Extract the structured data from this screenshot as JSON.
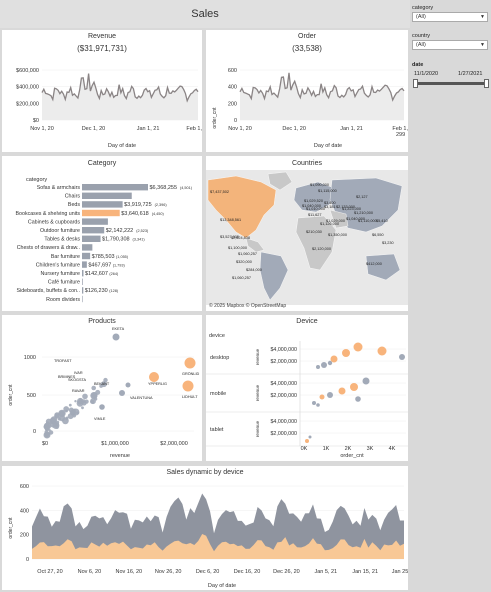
{
  "dashboard": {
    "title": "Sales"
  },
  "filters": {
    "category": {
      "label": "category",
      "value": "(All)"
    },
    "country": {
      "label": "country",
      "value": "(All)"
    },
    "date": {
      "label": "date",
      "start": "11/1/2020",
      "end": "1/27/2021"
    }
  },
  "revenue": {
    "title": "Revenue",
    "total": "($31,971,731)",
    "xlabel": "Day of date",
    "yticks": [
      "$600,000",
      "$400,000",
      "$200,000",
      "$0"
    ],
    "xticks": [
      "Nov 1, 20",
      "Dec 1, 20",
      "Jan 1, 21",
      "Feb 1, 21"
    ]
  },
  "order": {
    "title": "Order",
    "total": "(33,538)",
    "xlabel": "Day of date",
    "ylabel": "order_cnt",
    "yticks": [
      "600",
      "400",
      "200",
      "0"
    ],
    "xticks": [
      "Nov 1, 20",
      "Dec 1, 20",
      "Jan 1, 21",
      "Feb 1, 21"
    ],
    "last_label": "299"
  },
  "category_panel": {
    "title": "Category",
    "header": "category",
    "rows": [
      {
        "name": "Sofas & armchairs",
        "value": 6368255,
        "label": "$6,368,255",
        "cnt": "(4,501)",
        "highlight": false
      },
      {
        "name": "Chairs",
        "value": 4800000,
        "label": "",
        "cnt": "",
        "highlight": false
      },
      {
        "name": "Beds",
        "value": 3919725,
        "label": "$3,919,725",
        "cnt": "(2,396)",
        "highlight": false
      },
      {
        "name": "Bookcases & shelving units",
        "value": 3640618,
        "label": "$3,640,618",
        "cnt": "(4,450)",
        "highlight": true
      },
      {
        "name": "Cabinets & cupboards",
        "value": 2500000,
        "label": "",
        "cnt": "",
        "highlight": false
      },
      {
        "name": "Outdoor furniture",
        "value": 2142222,
        "label": "$2,142,222",
        "cnt": "(2,523)",
        "highlight": false
      },
      {
        "name": "Tables & desks",
        "value": 1790308,
        "label": "$1,790,308",
        "cnt": "(3,341)",
        "highlight": false
      },
      {
        "name": "Chests of drawers & draw..",
        "value": 1000000,
        "label": "",
        "cnt": "",
        "highlight": false
      },
      {
        "name": "Bar furniture",
        "value": 785503,
        "label": "$785,503",
        "cnt": "(1,055)",
        "highlight": false
      },
      {
        "name": "Children's furniture",
        "value": 467697,
        "label": "$467,697",
        "cnt": "(1,793)",
        "highlight": false
      },
      {
        "name": "Nursery furniture",
        "value": 142607,
        "label": "$142,607",
        "cnt": "(264)",
        "highlight": false
      },
      {
        "name": "Café furniture",
        "value": 70000,
        "label": "",
        "cnt": "",
        "highlight": false
      },
      {
        "name": "Sideboards, buffets & con..",
        "value": 126230,
        "label": "$126,230",
        "cnt": "(128)",
        "highlight": false
      },
      {
        "name": "Room dividers",
        "value": 10000,
        "label": "",
        "cnt": "",
        "highlight": false
      }
    ]
  },
  "countries": {
    "title": "Countries",
    "attribution": "© 2025 Mapbox © OpenStreetMap",
    "colors": {
      "water": "#e8e8e8",
      "land": "#c8c8c8",
      "highlight": "#f3b47b",
      "data": "#a2aab8"
    },
    "labels": [
      "$7,437,502",
      "$13,348,561",
      "$3,527,905",
      "$2,624,838",
      "$1,100,000",
      "$320,000",
      "$284,000",
      "$1,060,257",
      "$1,060,257",
      "$1,090,000",
      "$1,115,000",
      "$3,400",
      "$3,181",
      "$1,029,520",
      "$1,040,000",
      "$1,010,000",
      "$11,627",
      "$210,030",
      "$2,120,000",
      "$1,126,000",
      "$1,029,000",
      "$1,350,000",
      "$2,133,000",
      "$1,223,000",
      "$1,040,000",
      "$1,210,000",
      "$2,127",
      "$1,110,000",
      "$412,000",
      "$5,410",
      "$6,550",
      "$3,230"
    ]
  },
  "products": {
    "title": "Products",
    "xlabel": "revenue",
    "ylabel": "order_cnt",
    "xticks": [
      "$0",
      "$1,000,000",
      "$2,000,000"
    ],
    "yticks": [
      "1000",
      "500",
      "0"
    ],
    "labels": [
      "EKETA",
      "TROFAST",
      "IVAR",
      "BRIMNES",
      "SKOGSTA",
      "BEKANT",
      "YPPERLIG",
      "VALENTUNA",
      "GRÖNLID",
      "LIDHULT",
      "VIMLE",
      "RAVAR"
    ]
  },
  "device": {
    "title": "Device",
    "header": "device",
    "rows": [
      "desktop",
      "mobile",
      "tablet"
    ],
    "ylabel": "revenue",
    "yticks": [
      "$4,000,000",
      "$2,000,000"
    ],
    "xticks": [
      "0K",
      "1K",
      "2K",
      "3K",
      "4K"
    ],
    "xlabel": "order_cnt"
  },
  "dynamic": {
    "title": "Sales dynamic by device",
    "ylabel": "order_cnt",
    "xlabel": "Day of date",
    "yticks": [
      "600",
      "400",
      "200",
      "0"
    ],
    "xticks": [
      "Oct 27, 20",
      "Nov 6, 20",
      "Nov 16, 20",
      "Nov 26, 20",
      "Dec 6, 20",
      "Dec 16, 20",
      "Dec 26, 20",
      "Jan 5, 21",
      "Jan 15, 21",
      "Jan 25, 21"
    ],
    "colors": {
      "total": "#8f949f",
      "desktop": "#f8c896"
    }
  }
}
